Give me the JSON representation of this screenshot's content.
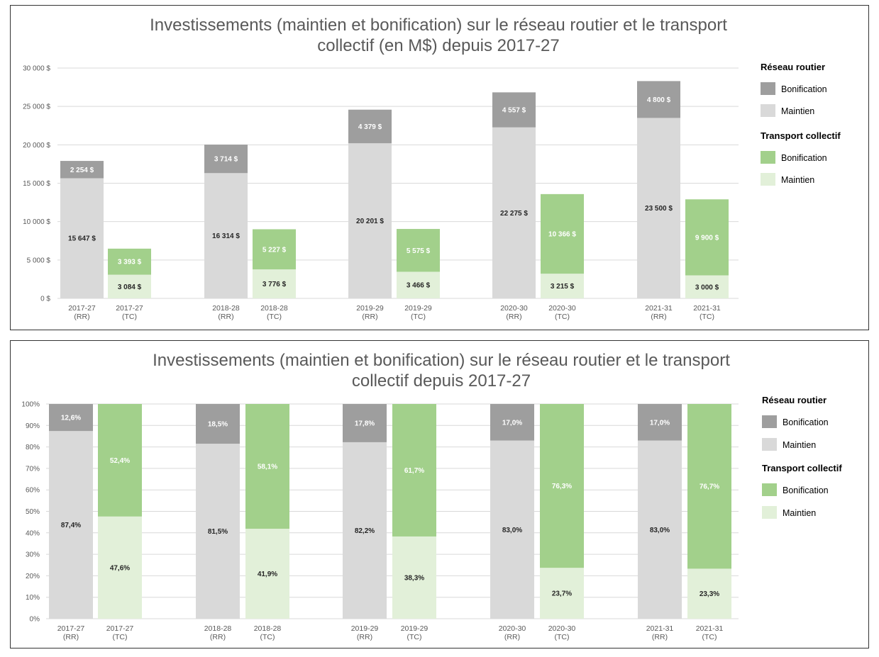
{
  "colors": {
    "rr_bonification": "#9e9e9e",
    "rr_maintien": "#d9d9d9",
    "tc_bonification": "#a2d08b",
    "tc_maintien": "#e2f0d9",
    "label_dark": "#262626",
    "label_light": "#ffffff"
  },
  "chart_data": [
    {
      "type": "bar",
      "stacked": true,
      "title": [
        "Investissements (maintien et bonification) sur le réseau routier et le transport",
        "collectif (en M$) depuis 2017-27"
      ],
      "xlabel": "",
      "ylabel": "",
      "ylim": [
        0,
        30000
      ],
      "yticks": [
        "0 $",
        "5 000 $",
        "10 000 $",
        "15 000 $",
        "20 000 $",
        "25 000 $",
        "30 000 $"
      ],
      "grid": true,
      "legend_position": "right",
      "legend": [
        {
          "group": "Réseau routier",
          "items": [
            {
              "name": "Bonification",
              "color": "rr_bonification"
            },
            {
              "name": "Maintien",
              "color": "rr_maintien"
            }
          ]
        },
        {
          "group": "Transport collectif",
          "items": [
            {
              "name": "Bonification",
              "color": "tc_bonification"
            },
            {
              "name": "Maintien",
              "color": "tc_maintien"
            }
          ]
        }
      ],
      "groups": [
        {
          "bars": [
            {
              "label": [
                "2017-27",
                "(RR)"
              ],
              "kind": "rr",
              "maintien": 15647,
              "bonification": 2254,
              "maintien_label": "15 647 $",
              "bonification_label": "2 254 $"
            },
            {
              "label": [
                "2017-27",
                "(TC)"
              ],
              "kind": "tc",
              "maintien": 3084,
              "bonification": 3393,
              "maintien_label": "3 084 $",
              "bonification_label": "3 393 $"
            }
          ]
        },
        {
          "bars": [
            {
              "label": [
                "2018-28",
                "(RR)"
              ],
              "kind": "rr",
              "maintien": 16314,
              "bonification": 3714,
              "maintien_label": "16 314 $",
              "bonification_label": "3 714 $"
            },
            {
              "label": [
                "2018-28",
                "(TC)"
              ],
              "kind": "tc",
              "maintien": 3776,
              "bonification": 5227,
              "maintien_label": "3 776 $",
              "bonification_label": "5 227 $"
            }
          ]
        },
        {
          "bars": [
            {
              "label": [
                "2019-29",
                "(RR)"
              ],
              "kind": "rr",
              "maintien": 20201,
              "bonification": 4379,
              "maintien_label": "20 201 $",
              "bonification_label": "4 379 $"
            },
            {
              "label": [
                "2019-29",
                "(TC)"
              ],
              "kind": "tc",
              "maintien": 3466,
              "bonification": 5575,
              "maintien_label": "3 466 $",
              "bonification_label": "5 575 $"
            }
          ]
        },
        {
          "bars": [
            {
              "label": [
                "2020-30",
                "(RR)"
              ],
              "kind": "rr",
              "maintien": 22275,
              "bonification": 4557,
              "maintien_label": "22 275 $",
              "bonification_label": "4 557 $"
            },
            {
              "label": [
                "2020-30",
                "(TC)"
              ],
              "kind": "tc",
              "maintien": 3215,
              "bonification": 10366,
              "maintien_label": "3 215 $",
              "bonification_label": "10 366 $"
            }
          ]
        },
        {
          "bars": [
            {
              "label": [
                "2021-31",
                "(RR)"
              ],
              "kind": "rr",
              "maintien": 23500,
              "bonification": 4800,
              "maintien_label": "23 500 $",
              "bonification_label": "4 800 $"
            },
            {
              "label": [
                "2021-31",
                "(TC)"
              ],
              "kind": "tc",
              "maintien": 3000,
              "bonification": 9900,
              "maintien_label": "3 000 $",
              "bonification_label": "9 900 $"
            }
          ]
        }
      ]
    },
    {
      "type": "bar",
      "stacked": true,
      "percent": true,
      "title": [
        "Investissements (maintien et bonification) sur le réseau routier et le transport",
        "collectif depuis 2017-27"
      ],
      "xlabel": "",
      "ylabel": "",
      "ylim": [
        0,
        100
      ],
      "yticks": [
        "0%",
        "10%",
        "20%",
        "30%",
        "40%",
        "50%",
        "60%",
        "70%",
        "80%",
        "90%",
        "100%"
      ],
      "grid": true,
      "legend_position": "right",
      "legend": [
        {
          "group": "Réseau routier",
          "items": [
            {
              "name": "Bonification",
              "color": "rr_bonification"
            },
            {
              "name": "Maintien",
              "color": "rr_maintien"
            }
          ]
        },
        {
          "group": "Transport collectif",
          "items": [
            {
              "name": "Bonification",
              "color": "tc_bonification"
            },
            {
              "name": "Maintien",
              "color": "tc_maintien"
            }
          ]
        }
      ],
      "groups": [
        {
          "bars": [
            {
              "label": [
                "2017-27",
                "(RR)"
              ],
              "kind": "rr",
              "maintien": 87.4,
              "bonification": 12.6,
              "maintien_label": "87,4%",
              "bonification_label": "12,6%"
            },
            {
              "label": [
                "2017-27",
                "(TC)"
              ],
              "kind": "tc",
              "maintien": 47.6,
              "bonification": 52.4,
              "maintien_label": "47,6%",
              "bonification_label": "52,4%"
            }
          ]
        },
        {
          "bars": [
            {
              "label": [
                "2018-28",
                "(RR)"
              ],
              "kind": "rr",
              "maintien": 81.5,
              "bonification": 18.5,
              "maintien_label": "81,5%",
              "bonification_label": "18,5%"
            },
            {
              "label": [
                "2018-28",
                "(TC)"
              ],
              "kind": "tc",
              "maintien": 41.9,
              "bonification": 58.1,
              "maintien_label": "41,9%",
              "bonification_label": "58,1%"
            }
          ]
        },
        {
          "bars": [
            {
              "label": [
                "2019-29",
                "(RR)"
              ],
              "kind": "rr",
              "maintien": 82.2,
              "bonification": 17.8,
              "maintien_label": "82,2%",
              "bonification_label": "17,8%"
            },
            {
              "label": [
                "2019-29",
                "(TC)"
              ],
              "kind": "tc",
              "maintien": 38.3,
              "bonification": 61.7,
              "maintien_label": "38,3%",
              "bonification_label": "61,7%"
            }
          ]
        },
        {
          "bars": [
            {
              "label": [
                "2020-30",
                "(RR)"
              ],
              "kind": "rr",
              "maintien": 83.0,
              "bonification": 17.0,
              "maintien_label": "83,0%",
              "bonification_label": "17,0%"
            },
            {
              "label": [
                "2020-30",
                "(TC)"
              ],
              "kind": "tc",
              "maintien": 23.7,
              "bonification": 76.3,
              "maintien_label": "23,7%",
              "bonification_label": "76,3%"
            }
          ]
        },
        {
          "bars": [
            {
              "label": [
                "2021-31",
                "(RR)"
              ],
              "kind": "rr",
              "maintien": 83.0,
              "bonification": 17.0,
              "maintien_label": "83,0%",
              "bonification_label": "17,0%"
            },
            {
              "label": [
                "2021-31",
                "(TC)"
              ],
              "kind": "tc",
              "maintien": 23.3,
              "bonification": 76.7,
              "maintien_label": "23,3%",
              "bonification_label": "76,7%"
            }
          ]
        }
      ]
    }
  ]
}
